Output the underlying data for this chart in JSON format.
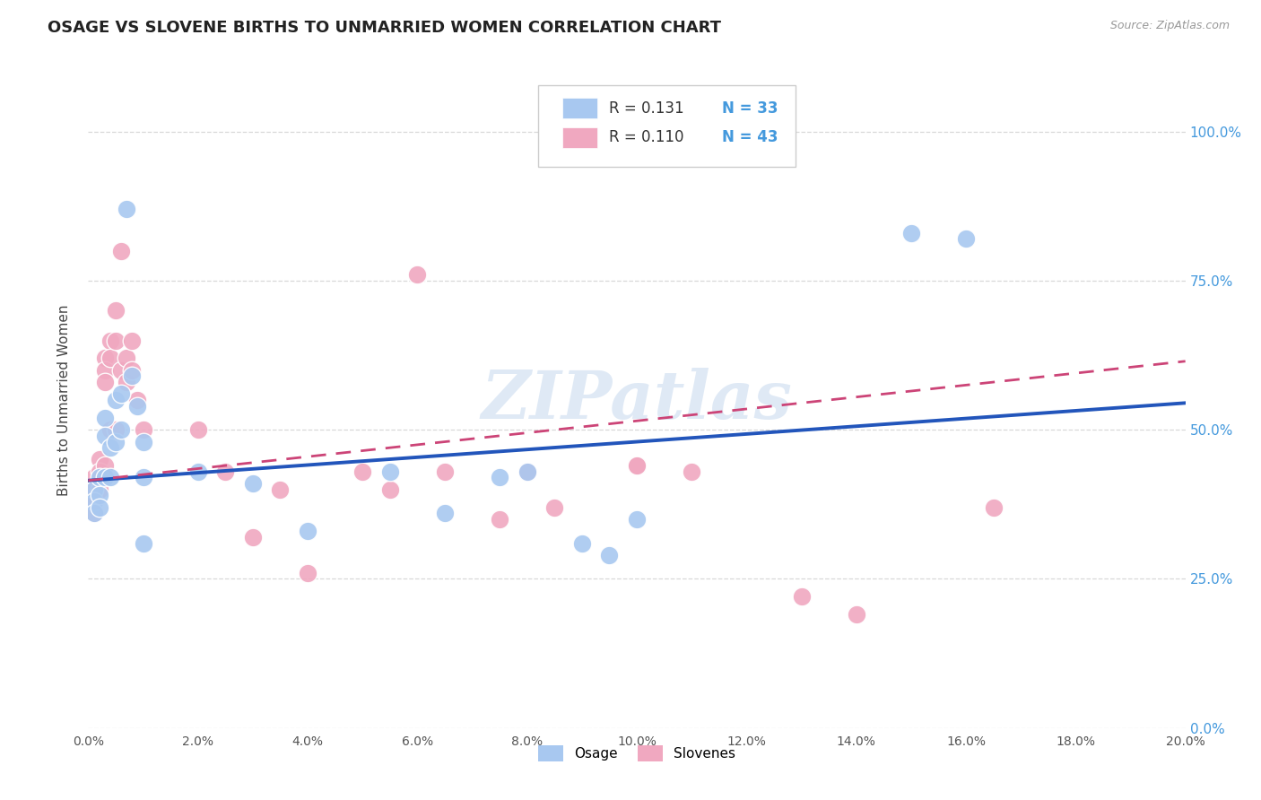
{
  "title": "OSAGE VS SLOVENE BIRTHS TO UNMARRIED WOMEN CORRELATION CHART",
  "source": "Source: ZipAtlas.com",
  "ylabel": "Births to Unmarried Women",
  "xlim": [
    0.0,
    0.2
  ],
  "ylim": [
    0.0,
    1.1
  ],
  "osage_color": "#a8c8f0",
  "slovene_color": "#f0a8c0",
  "line_osage_color": "#2255bb",
  "line_slovene_color": "#cc4477",
  "watermark": "ZIPatlas",
  "background_color": "#ffffff",
  "grid_color": "#d8d8d8",
  "legend_r1": "R = 0.131",
  "legend_n1": "N = 33",
  "legend_r2": "R = 0.110",
  "legend_n2": "N = 43",
  "osage_x": [
    0.001,
    0.001,
    0.001,
    0.002,
    0.002,
    0.002,
    0.003,
    0.003,
    0.003,
    0.004,
    0.004,
    0.005,
    0.005,
    0.006,
    0.006,
    0.007,
    0.008,
    0.009,
    0.01,
    0.01,
    0.01,
    0.02,
    0.03,
    0.04,
    0.055,
    0.065,
    0.075,
    0.08,
    0.09,
    0.095,
    0.1,
    0.15,
    0.16
  ],
  "osage_y": [
    0.4,
    0.38,
    0.36,
    0.42,
    0.39,
    0.37,
    0.52,
    0.49,
    0.42,
    0.47,
    0.42,
    0.55,
    0.48,
    0.56,
    0.5,
    0.87,
    0.59,
    0.54,
    0.48,
    0.42,
    0.31,
    0.43,
    0.41,
    0.33,
    0.43,
    0.36,
    0.42,
    0.43,
    0.31,
    0.29,
    0.35,
    0.83,
    0.82
  ],
  "slovene_x": [
    0.001,
    0.001,
    0.001,
    0.001,
    0.002,
    0.002,
    0.002,
    0.003,
    0.003,
    0.003,
    0.003,
    0.004,
    0.004,
    0.004,
    0.005,
    0.005,
    0.005,
    0.006,
    0.006,
    0.007,
    0.007,
    0.008,
    0.008,
    0.009,
    0.01,
    0.02,
    0.025,
    0.03,
    0.035,
    0.04,
    0.05,
    0.055,
    0.06,
    0.065,
    0.075,
    0.08,
    0.085,
    0.1,
    0.1,
    0.11,
    0.13,
    0.14,
    0.165
  ],
  "slovene_y": [
    0.42,
    0.4,
    0.38,
    0.36,
    0.45,
    0.43,
    0.4,
    0.62,
    0.6,
    0.58,
    0.44,
    0.65,
    0.62,
    0.5,
    0.7,
    0.65,
    0.5,
    0.8,
    0.6,
    0.62,
    0.58,
    0.65,
    0.6,
    0.55,
    0.5,
    0.5,
    0.43,
    0.32,
    0.4,
    0.26,
    0.43,
    0.4,
    0.76,
    0.43,
    0.35,
    0.43,
    0.37,
    0.44,
    0.44,
    0.43,
    0.22,
    0.19,
    0.37
  ],
  "line_osage_x0": 0.0,
  "line_osage_y0": 0.415,
  "line_osage_x1": 0.2,
  "line_osage_y1": 0.545,
  "line_slovene_x0": 0.0,
  "line_slovene_y0": 0.415,
  "line_slovene_x1": 0.2,
  "line_slovene_y1": 0.615
}
